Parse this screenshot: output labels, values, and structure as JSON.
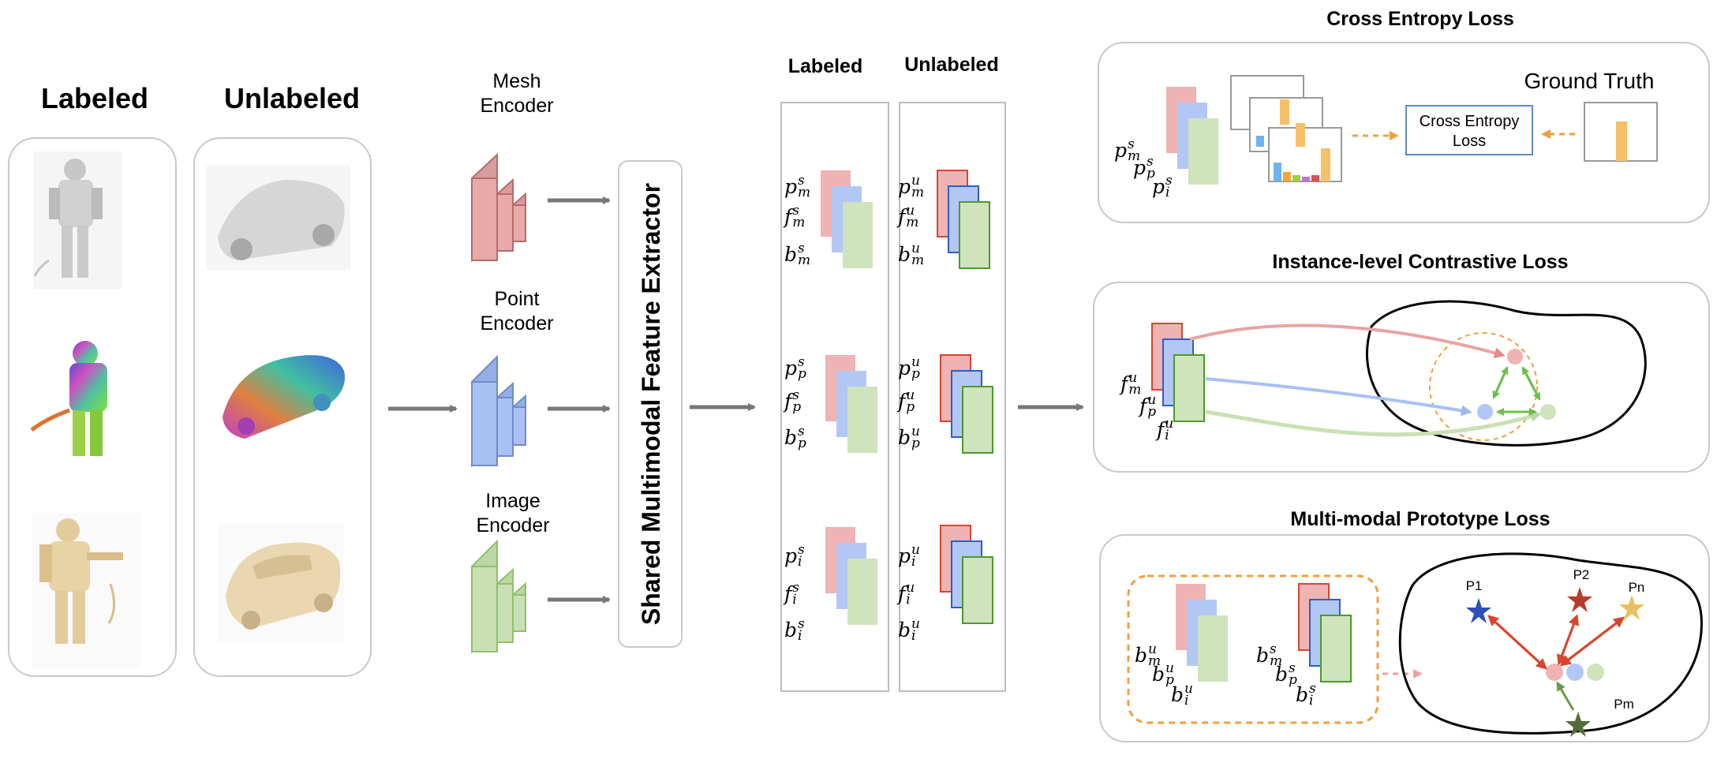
{
  "left": {
    "labeled_title": "Labeled",
    "unlabeled_title": "Unlabeled"
  },
  "encoders": {
    "mesh": [
      "Mesh",
      "Encoder"
    ],
    "point": [
      "Point",
      "Encoder"
    ],
    "image": [
      "Image",
      "Encoder"
    ]
  },
  "extractor_label": "Shared Multimodal Feature Extractor",
  "features": {
    "labeled_title": "Labeled",
    "unlabeled_title": "Unlabeled",
    "labeled_groups": [
      {
        "rows": [
          {
            "base": "p",
            "sub": "m",
            "sup": "s"
          },
          {
            "base": "f",
            "sub": "m",
            "sup": "s"
          },
          {
            "base": "b",
            "sub": "m",
            "sup": "s"
          }
        ]
      },
      {
        "rows": [
          {
            "base": "p",
            "sub": "p",
            "sup": "s"
          },
          {
            "base": "f",
            "sub": "p",
            "sup": "s"
          },
          {
            "base": "b",
            "sub": "p",
            "sup": "s"
          }
        ]
      },
      {
        "rows": [
          {
            "base": "p",
            "sub": "i",
            "sup": "s"
          },
          {
            "base": "f",
            "sub": "i",
            "sup": "s"
          },
          {
            "base": "b",
            "sub": "i",
            "sup": "s"
          }
        ]
      }
    ],
    "unlabeled_groups": [
      {
        "rows": [
          {
            "base": "p",
            "sub": "m",
            "sup": "u"
          },
          {
            "base": "f",
            "sub": "m",
            "sup": "u"
          },
          {
            "base": "b",
            "sub": "m",
            "sup": "u"
          }
        ]
      },
      {
        "rows": [
          {
            "base": "p",
            "sub": "p",
            "sup": "u"
          },
          {
            "base": "f",
            "sub": "p",
            "sup": "u"
          },
          {
            "base": "b",
            "sub": "p",
            "sup": "u"
          }
        ]
      },
      {
        "rows": [
          {
            "base": "p",
            "sub": "i",
            "sup": "u"
          },
          {
            "base": "f",
            "sub": "i",
            "sup": "u"
          },
          {
            "base": "b",
            "sub": "i",
            "sup": "u"
          }
        ]
      }
    ]
  },
  "ce": {
    "title": "Cross Entropy Loss",
    "ground_truth": "Ground Truth",
    "box_label": [
      "Cross Entropy",
      "Loss"
    ],
    "labels": [
      {
        "base": "p",
        "sub": "m",
        "sup": "s"
      },
      {
        "base": "p",
        "sub": "p",
        "sup": "s"
      },
      {
        "base": "p",
        "sub": "i",
        "sup": "s"
      }
    ]
  },
  "ic": {
    "title": "Instance-level Contrastive Loss",
    "labels": [
      {
        "base": "f",
        "sub": "m",
        "sup": "u"
      },
      {
        "base": "f",
        "sub": "p",
        "sup": "u"
      },
      {
        "base": "f",
        "sub": "i",
        "sup": "u"
      }
    ]
  },
  "mp": {
    "title": "Multi-modal Prototype Loss",
    "labels_u": [
      {
        "base": "b",
        "sub": "m",
        "sup": "u"
      },
      {
        "base": "b",
        "sub": "p",
        "sup": "u"
      },
      {
        "base": "b",
        "sub": "i",
        "sup": "u"
      }
    ],
    "labels_s": [
      {
        "base": "b",
        "sub": "m",
        "sup": "s"
      },
      {
        "base": "b",
        "sub": "p",
        "sup": "s"
      },
      {
        "base": "b",
        "sub": "i",
        "sup": "s"
      }
    ],
    "prototypes": [
      "P1",
      "P2",
      "Pn",
      "Pm"
    ]
  },
  "colors": {
    "red": "#e8a3a3",
    "blue": "#a9c0f2",
    "green": "#c9e0b4",
    "orange": "#f0a040",
    "arrow": "#777777",
    "proto_arrow": "#d9452f"
  }
}
